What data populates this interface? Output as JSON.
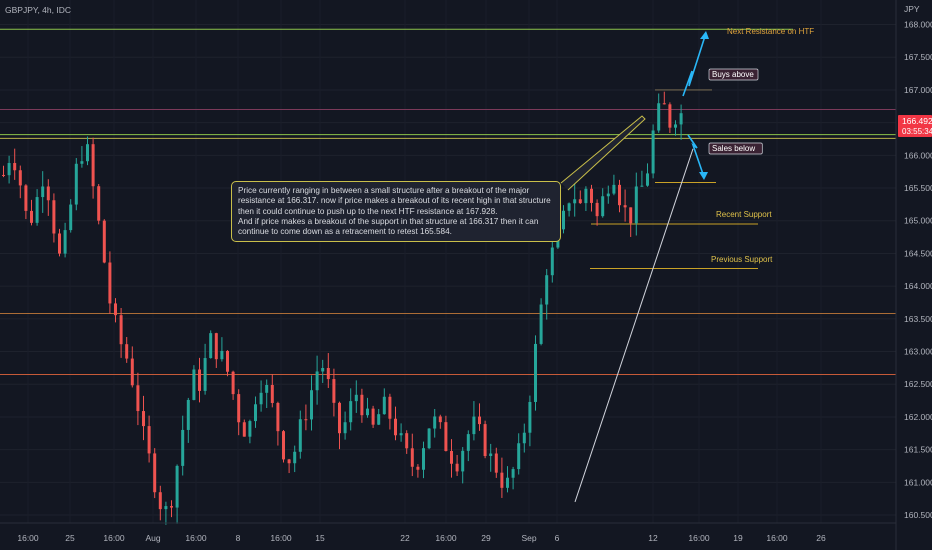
{
  "header": {
    "symbol": "GBPJPY, 4h, IDC"
  },
  "price_axis": {
    "unit": "JPY",
    "ticks": [
      "168.000",
      "167.500",
      "167.000",
      "166.500",
      "166.000",
      "165.500",
      "165.000",
      "164.500",
      "164.000",
      "163.500",
      "163.000",
      "162.500",
      "162.000",
      "161.500",
      "161.000",
      "160.500"
    ]
  },
  "current_price": {
    "value": "166.492",
    "countdown": "03:55:34",
    "color": "#f23645"
  },
  "time_axis": {
    "labels": [
      "16:00",
      "25",
      "16:00",
      "Aug",
      "16:00",
      "8",
      "16:00",
      "15",
      "22",
      "16:00",
      "29",
      "Sep",
      "6",
      "12",
      "16:00",
      "19",
      "16:00",
      "26"
    ]
  },
  "annotations": {
    "next_resistance": "Next Resistance on HTF",
    "buys_above": "Buys above",
    "sales_below": "Sales below",
    "recent_support": "Recent Support",
    "previous_support": "Previous Support",
    "callout": "Price currently ranging in between a small structure after a breakout of the major resistance at 166.317. now if price makes a breakout of its recent high in that structure then it could continue to push up to the next HTF resistance at 167.928.\nAnd if price makes a breakout of the support in that structure at 166.317 then it can continue to come down as a retracement to retest 165.584."
  },
  "colors": {
    "background": "#131722",
    "bull": "#26a69a",
    "bear": "#ef5350",
    "resistance_green": "#8bc34a",
    "support_gold": "#c9a227",
    "orange_line": "#e08a3c",
    "arrow_cyan": "#29b6f6",
    "trendline": "#d1d4dc"
  },
  "chart_data": {
    "type": "candlestick",
    "instrument": "GBPJPY",
    "timeframe": "4h",
    "ylim": [
      160.3,
      168.3
    ],
    "horizontal_levels": [
      {
        "price": 167.928,
        "label": "Next Resistance on HTF"
      },
      {
        "price": 166.317
      },
      {
        "price": 166.26
      },
      {
        "price": 166.7
      },
      {
        "price": 163.58
      },
      {
        "price": 162.65
      }
    ],
    "support_levels": [
      {
        "price": 165.584
      },
      {
        "price": 164.95,
        "label": "Recent Support"
      },
      {
        "price": 164.27,
        "label": "Previous Support"
      }
    ],
    "close_path": [
      [
        0,
        165.7
      ],
      [
        6,
        166.1
      ],
      [
        12,
        165.6
      ],
      [
        18,
        164.9
      ],
      [
        24,
        165.3
      ],
      [
        30,
        165.8
      ],
      [
        36,
        165.0
      ],
      [
        42,
        164.3
      ],
      [
        48,
        165.1
      ],
      [
        54,
        165.9
      ],
      [
        60,
        166.2
      ],
      [
        66,
        165.4
      ],
      [
        72,
        164.6
      ],
      [
        78,
        163.7
      ],
      [
        84,
        163.2
      ],
      [
        90,
        162.9
      ],
      [
        96,
        162.4
      ],
      [
        102,
        161.7
      ],
      [
        108,
        161.2
      ],
      [
        114,
        160.7
      ],
      [
        120,
        160.5
      ],
      [
        126,
        161.2
      ],
      [
        132,
        162.0
      ],
      [
        138,
        162.6
      ],
      [
        144,
        162.5
      ],
      [
        150,
        163.2
      ],
      [
        156,
        163.0
      ],
      [
        162,
        162.8
      ],
      [
        168,
        162.3
      ],
      [
        174,
        161.8
      ],
      [
        180,
        161.9
      ],
      [
        186,
        162.6
      ],
      [
        192,
        162.4
      ],
      [
        198,
        162.0
      ],
      [
        204,
        161.5
      ],
      [
        210,
        161.3
      ],
      [
        216,
        161.8
      ],
      [
        222,
        162.2
      ],
      [
        228,
        162.7
      ],
      [
        234,
        162.8
      ],
      [
        240,
        162.1
      ],
      [
        246,
        161.7
      ],
      [
        252,
        162.1
      ],
      [
        258,
        162.4
      ],
      [
        264,
        162.0
      ],
      [
        270,
        161.8
      ],
      [
        276,
        162.2
      ],
      [
        282,
        162.0
      ],
      [
        288,
        161.7
      ],
      [
        294,
        161.4
      ],
      [
        300,
        161.2
      ],
      [
        306,
        161.6
      ],
      [
        312,
        162.0
      ],
      [
        318,
        161.8
      ],
      [
        324,
        161.5
      ],
      [
        330,
        161.3
      ],
      [
        336,
        161.6
      ],
      [
        342,
        161.9
      ],
      [
        348,
        161.7
      ],
      [
        354,
        161.4
      ],
      [
        360,
        161.2
      ],
      [
        366,
        160.9
      ],
      [
        372,
        161.2
      ],
      [
        378,
        161.6
      ],
      [
        384,
        162.4
      ],
      [
        390,
        163.4
      ],
      [
        396,
        164.3
      ],
      [
        402,
        164.6
      ],
      [
        408,
        165.0
      ],
      [
        414,
        165.5
      ],
      [
        420,
        165.2
      ],
      [
        426,
        165.6
      ],
      [
        432,
        165.0
      ],
      [
        438,
        165.4
      ],
      [
        444,
        165.8
      ],
      [
        450,
        165.3
      ],
      [
        456,
        165.0
      ],
      [
        462,
        165.4
      ],
      [
        468,
        165.6
      ],
      [
        474,
        166.4
      ],
      [
        480,
        166.8
      ],
      [
        486,
        166.5
      ],
      [
        492,
        166.7
      ],
      [
        498,
        166.49
      ]
    ]
  }
}
